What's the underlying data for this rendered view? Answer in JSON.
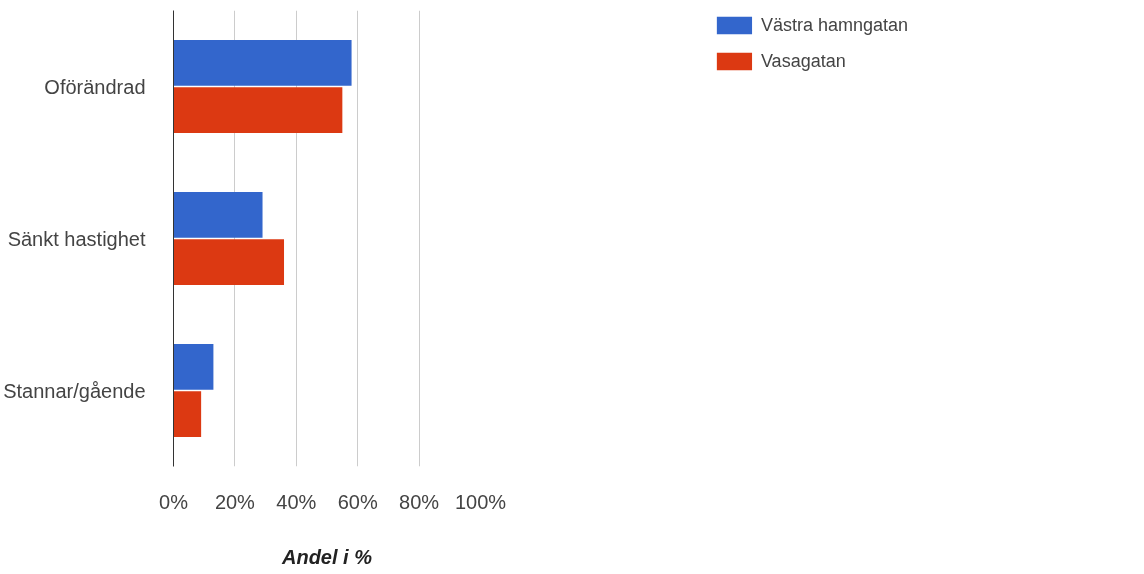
{
  "chart_data": {
    "type": "bar",
    "orientation": "horizontal",
    "xlabel": "Andel i %",
    "categories": [
      "Oförändrad",
      "Sänkt hastighet",
      "Stannar/gående"
    ],
    "series": [
      {
        "name": "Västra hamngatan",
        "color": "#3366cc",
        "values": [
          58,
          29,
          13
        ]
      },
      {
        "name": "Vasagatan",
        "color": "#dc3912",
        "values": [
          55,
          36,
          9
        ]
      }
    ],
    "xlim": [
      0,
      100
    ],
    "xticks": [
      {
        "value": 0,
        "label": "0%"
      },
      {
        "value": 20,
        "label": "20%"
      },
      {
        "value": 40,
        "label": "40%"
      },
      {
        "value": 60,
        "label": "60%"
      },
      {
        "value": 80,
        "label": "80%"
      },
      {
        "value": 100,
        "label": "100%"
      }
    ],
    "grid": "x",
    "legend": "top right"
  }
}
